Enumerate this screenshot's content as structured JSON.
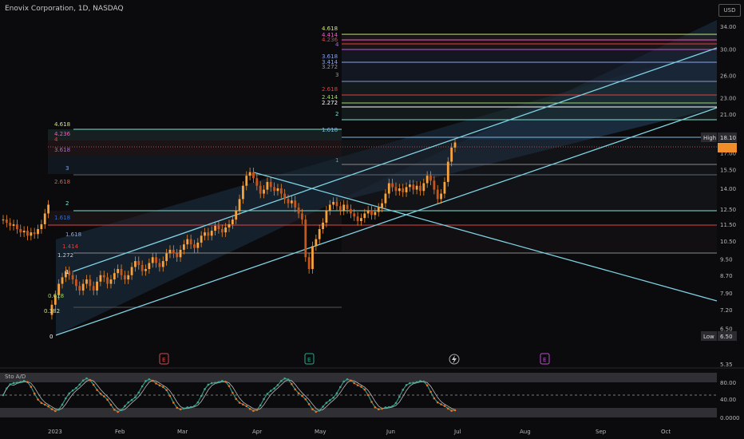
{
  "header": {
    "title": "Enovix Corporation, 1D, NASDAQ",
    "currency": "USD"
  },
  "colors": {
    "up": "#f08c2a",
    "down": "#f08c2a",
    "channel": "#7fd3e3",
    "bg": "#0b0b0e",
    "osc_k": "#3aa890",
    "osc_d": "#f06e1e"
  },
  "chart_data": [
    {
      "type": "candlestick",
      "title": "Enovix Corporation, 1D, NASDAQ",
      "x_ticks": [
        "2023",
        "Feb",
        "Mar",
        "Apr",
        "May",
        "Jun",
        "Jul",
        "Aug",
        "Sep",
        "Oct"
      ],
      "y_ticks": [
        34.0,
        30.0,
        26.0,
        23.0,
        21.0,
        17.0,
        15.5,
        14.0,
        12.5,
        11.5,
        10.5,
        9.5,
        8.7,
        7.9,
        7.2,
        6.5,
        5.35
      ],
      "ylim": [
        5.35,
        36
      ],
      "y_scale": "log",
      "price_labels": {
        "high_label": "High",
        "high_value": "18.10",
        "low_label": "Low",
        "low_value": "6.50"
      },
      "event_markers": [
        "E",
        "E",
        "E"
      ],
      "fib_levels_left": [
        "4.618",
        "4.236",
        "4",
        "3.618",
        "3",
        "2.618",
        "2",
        "1.618",
        "1.618",
        "1.414",
        "1.272",
        "1",
        "0.618",
        "0.382",
        "0"
      ],
      "fib_levels_right": [
        "4.618",
        "4.414",
        "4.236",
        "4",
        "3.618",
        "3.414",
        "3.272",
        "3",
        "2.618",
        "2.414",
        "2.272",
        "2",
        "1.618",
        "1"
      ]
    },
    {
      "type": "line",
      "title": "Sto A/D",
      "y_ticks": [
        "80.00",
        "40.00",
        "0.0000"
      ],
      "ylim": [
        0,
        100
      ]
    }
  ]
}
